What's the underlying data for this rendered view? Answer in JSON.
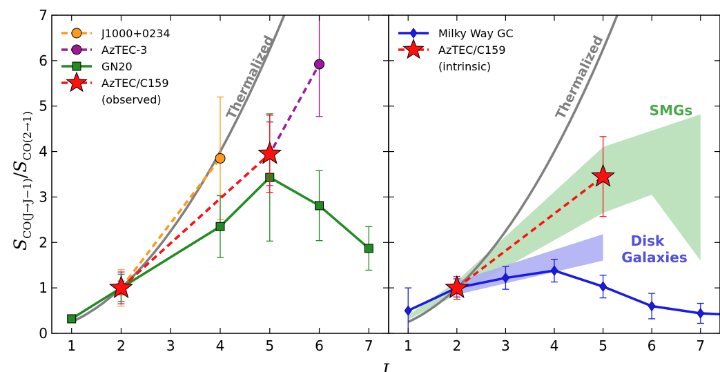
{
  "colors": {
    "orange": "#ff9a1a",
    "purple": "#9a1a9a",
    "green": "#228b22",
    "red": "#ff1010",
    "blue": "#1a1ae6",
    "gray": "#808080",
    "smg_fill": "#a8d8a8",
    "disk_fill": "#aaaaf4",
    "smg_text": "#4aa84a",
    "disk_text": "#5050e0"
  },
  "labels": {
    "ylabel": "S",
    "ylabel_sub": "CO(J→J−1)",
    "ylabel_div": "/",
    "ylabel2": "S",
    "ylabel2_sub": "CO(2→1)",
    "xlabel": "J",
    "thermalized_left": "Thermalized",
    "thermalized_right": "Thermalized",
    "smgs": "SMGs",
    "disk_1": "Disk",
    "disk_2": "Galaxies"
  },
  "legend_left": [
    {
      "label": "J1000+0234",
      "marker": "circle",
      "color": "#ff9a1a",
      "dashed": true
    },
    {
      "label": "AzTEC-3",
      "marker": "circle",
      "color": "#9a1a9a",
      "dashed": true
    },
    {
      "label": "GN20",
      "marker": "square",
      "color": "#228b22",
      "dashed": false
    },
    {
      "label": "AzTEC/C159",
      "label2": "(observed)",
      "marker": "star",
      "color": "#ff1010",
      "dashed": true
    }
  ],
  "legend_right": [
    {
      "label": "Milky Way GC",
      "marker": "diamond",
      "color": "#1a1ae6",
      "dashed": false
    },
    {
      "label": "AzTEC/C159",
      "label2": "(intrinsic)",
      "marker": "star",
      "color": "#ff1010",
      "dashed": true
    }
  ],
  "chart_data": [
    {
      "type": "line",
      "panel": "left",
      "xlabel": "J",
      "ylabel": "S_CO(J→J−1)/S_CO(2→1)",
      "xlim": [
        0.6,
        7.4
      ],
      "ylim": [
        0,
        7
      ],
      "xticks": [
        1,
        2,
        3,
        4,
        5,
        6,
        7
      ],
      "yticks": [
        0,
        1,
        2,
        3,
        4,
        5,
        6,
        7
      ],
      "series": [
        {
          "name": "J1000+0234",
          "marker": "circle",
          "dashed": true,
          "x": [
            2,
            4
          ],
          "y": [
            1.0,
            3.85
          ],
          "err": [
            0.4,
            1.35
          ]
        },
        {
          "name": "AzTEC-3",
          "marker": "circle",
          "dashed": true,
          "x": [
            2,
            5,
            6
          ],
          "y": [
            1.0,
            3.95,
            5.92
          ],
          "err": [
            0.35,
            0.7,
            1.15
          ]
        },
        {
          "name": "GN20",
          "marker": "square",
          "dashed": false,
          "x": [
            1,
            2,
            4,
            5,
            7,
            6
          ],
          "y": [
            0.32,
            1.0,
            2.35,
            3.43,
            1.87,
            2.81
          ],
          "err": [
            0.0,
            0.3,
            0.68,
            1.4,
            0.48,
            0.77
          ],
          "order": [
            0,
            1,
            2,
            3,
            5,
            4
          ]
        },
        {
          "name": "AzTEC/C159 (observed)",
          "marker": "star",
          "dashed": true,
          "x": [
            2,
            5
          ],
          "y": [
            1.0,
            3.95
          ],
          "err": [
            0.15,
            0.85
          ]
        }
      ],
      "thermalized_curve": "J^2"
    },
    {
      "type": "line",
      "panel": "right",
      "xlabel": "J",
      "xlim": [
        0.6,
        7.4
      ],
      "ylim": [
        0,
        7
      ],
      "xticks": [
        1,
        2,
        3,
        4,
        5,
        6,
        7
      ],
      "series": [
        {
          "name": "Milky Way GC",
          "marker": "diamond",
          "dashed": false,
          "x": [
            1,
            2,
            3,
            4,
            5,
            6,
            7,
            7.4
          ],
          "y": [
            0.5,
            1.0,
            1.22,
            1.38,
            1.03,
            0.6,
            0.44,
            0.42
          ],
          "err": [
            0.5,
            0.2,
            0.25,
            0.25,
            0.25,
            0.28,
            0.22,
            0
          ]
        },
        {
          "name": "AzTEC/C159 (intrinsic)",
          "marker": "star",
          "dashed": true,
          "x": [
            2,
            5
          ],
          "y": [
            1.0,
            3.45
          ],
          "err": [
            0.25,
            0.88
          ]
        }
      ],
      "bands": [
        {
          "name": "SMGs",
          "upper_x": [
            1,
            2,
            5,
            7
          ],
          "upper_y": [
            0.4,
            1.15,
            4.1,
            4.82
          ],
          "lower_x": [
            7,
            6,
            5,
            2,
            1
          ],
          "lower_y": [
            1.6,
            3.05,
            2.65,
            0.85,
            0.3
          ]
        },
        {
          "name": "Disk Galaxies",
          "upper_x": [
            2,
            5
          ],
          "upper_y": [
            1.15,
            2.18
          ],
          "lower_x": [
            5,
            2
          ],
          "lower_y": [
            1.6,
            0.85
          ]
        }
      ],
      "thermalized_curve": "J^2"
    }
  ]
}
